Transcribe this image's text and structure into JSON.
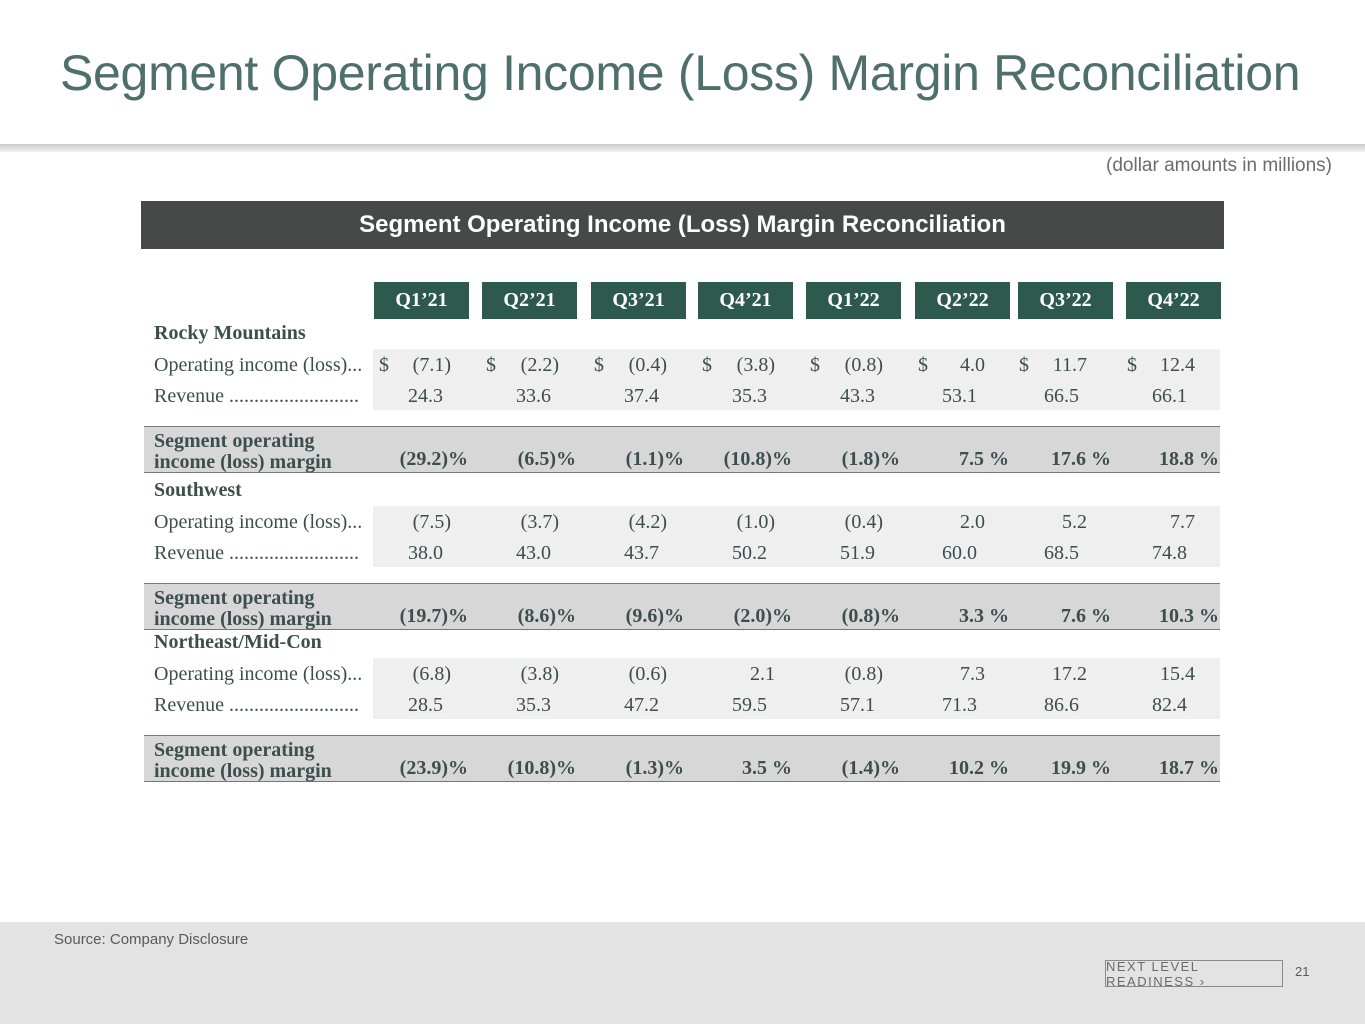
{
  "slide_title": "Segment Operating Income (Loss) Margin Reconciliation",
  "units_note": "(dollar amounts in millions)",
  "table_title": "Segment Operating Income (Loss) Margin Reconciliation",
  "quarters": [
    "Q1’21",
    "Q2’21",
    "Q3’21",
    "Q4’21",
    "Q1’22",
    "Q2’22",
    "Q3’22",
    "Q4’22"
  ],
  "dollar_sign": "$",
  "segments": [
    {
      "name": "Rocky Mountains",
      "op_label": "Operating income (loss)...",
      "rev_label": "Revenue ..........................",
      "margin_label_line1": "Segment operating",
      "margin_label_line2": "income (loss) margin",
      "operating_income": [
        "(7.1)",
        "(2.2)",
        "(0.4)",
        "(3.8)",
        "(0.8)",
        "4.0",
        "11.7",
        "12.4"
      ],
      "revenue": [
        "24.3",
        "33.6",
        "37.4",
        "35.3",
        "43.3",
        "53.1",
        "66.5",
        "66.1"
      ],
      "margin": [
        "(29.2)%",
        "(6.5)%",
        "(1.1)%",
        "(10.8)%",
        "(1.8)%",
        "7.5 %",
        "17.6 %",
        "18.8 %"
      ]
    },
    {
      "name": "Southwest",
      "op_label": "Operating income (loss)...",
      "rev_label": "Revenue ..........................",
      "margin_label_line1": "Segment operating",
      "margin_label_line2": "income (loss) margin",
      "operating_income": [
        "(7.5)",
        "(3.7)",
        "(4.2)",
        "(1.0)",
        "(0.4)",
        "2.0",
        "5.2",
        "7.7"
      ],
      "revenue": [
        "38.0",
        "43.0",
        "43.7",
        "50.2",
        "51.9",
        "60.0",
        "68.5",
        "74.8"
      ],
      "margin": [
        "(19.7)%",
        "(8.6)%",
        "(9.6)%",
        "(2.0)%",
        "(0.8)%",
        "3.3 %",
        "7.6 %",
        "10.3 %"
      ]
    },
    {
      "name": "Northeast/Mid-Con",
      "op_label": "Operating income (loss)...",
      "rev_label": "Revenue ..........................",
      "margin_label_line1": "Segment operating",
      "margin_label_line2": "income (loss) margin",
      "operating_income": [
        "(6.8)",
        "(3.8)",
        "(0.6)",
        "2.1",
        "(0.8)",
        "7.3",
        "17.2",
        "15.4"
      ],
      "revenue": [
        "28.5",
        "35.3",
        "47.2",
        "59.5",
        "57.1",
        "71.3",
        "86.6",
        "82.4"
      ],
      "margin": [
        "(23.9)%",
        "(10.8)%",
        "(1.3)%",
        "3.5 %",
        "(1.4)%",
        "10.2 %",
        "19.9 %",
        "18.7 %"
      ]
    }
  ],
  "footer": {
    "source": "Source: Company Disclosure",
    "brand": "NEXT LEVEL READINESS ›",
    "page_number": "21"
  }
}
